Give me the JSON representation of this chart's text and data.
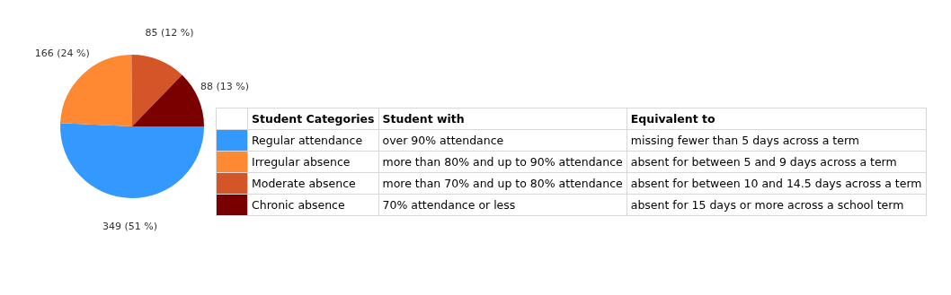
{
  "chart_data": {
    "type": "pie",
    "legend": "right",
    "legend_title": "Student Categories",
    "categories": [
      "Regular attendance",
      "Irregular absence",
      "Moderate absence",
      "Chronic absence"
    ],
    "values": [
      349,
      166,
      85,
      88
    ],
    "value_labels": [
      "349 (51 %)",
      "166 (24 %)",
      "85 (12 %)",
      "88 (13 %)"
    ],
    "colors": [
      "#3399ff",
      "#ff8833",
      "#d45527",
      "#7a0000"
    ],
    "annotations": [
      "Student with",
      "Equivalent to",
      "over 90% attendance",
      "missing fewer than 5 days across a term",
      "more than 80% and up to 90% attendance",
      "absent for between 5 and 9 days across a term",
      "more than 70% and up to 80% attendance",
      "absent for between 10 and 14.5 days across a term",
      "70% attendance or less",
      "absent for 15 days or more across a school term"
    ]
  }
}
